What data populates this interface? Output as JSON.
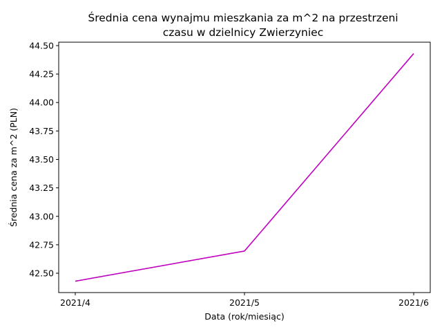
{
  "chart_data": {
    "type": "line",
    "title_lines": [
      "Średnia cena wynajmu mieszkania za m^2 na przestrzeni",
      "czasu w dzielnicy  Zwierzyniec"
    ],
    "xlabel": "Data (rok/miesiąc)",
    "ylabel": "Średnia cena za m^2 (PLN)",
    "categories": [
      "2021/4",
      "2021/5",
      "2021/6"
    ],
    "series": [
      {
        "values": [
          42.43,
          42.695,
          44.43
        ],
        "color": "#bf00bf"
      }
    ],
    "yticks": [
      42.5,
      42.75,
      43.0,
      43.25,
      43.5,
      43.75,
      44.0,
      44.25,
      44.5
    ],
    "ytick_labels": [
      "42.50",
      "42.75",
      "43.00",
      "43.25",
      "43.50",
      "43.75",
      "44.00",
      "44.25",
      "44.50"
    ],
    "ylim": [
      42.33,
      44.53
    ],
    "grid": false,
    "legend": false
  }
}
